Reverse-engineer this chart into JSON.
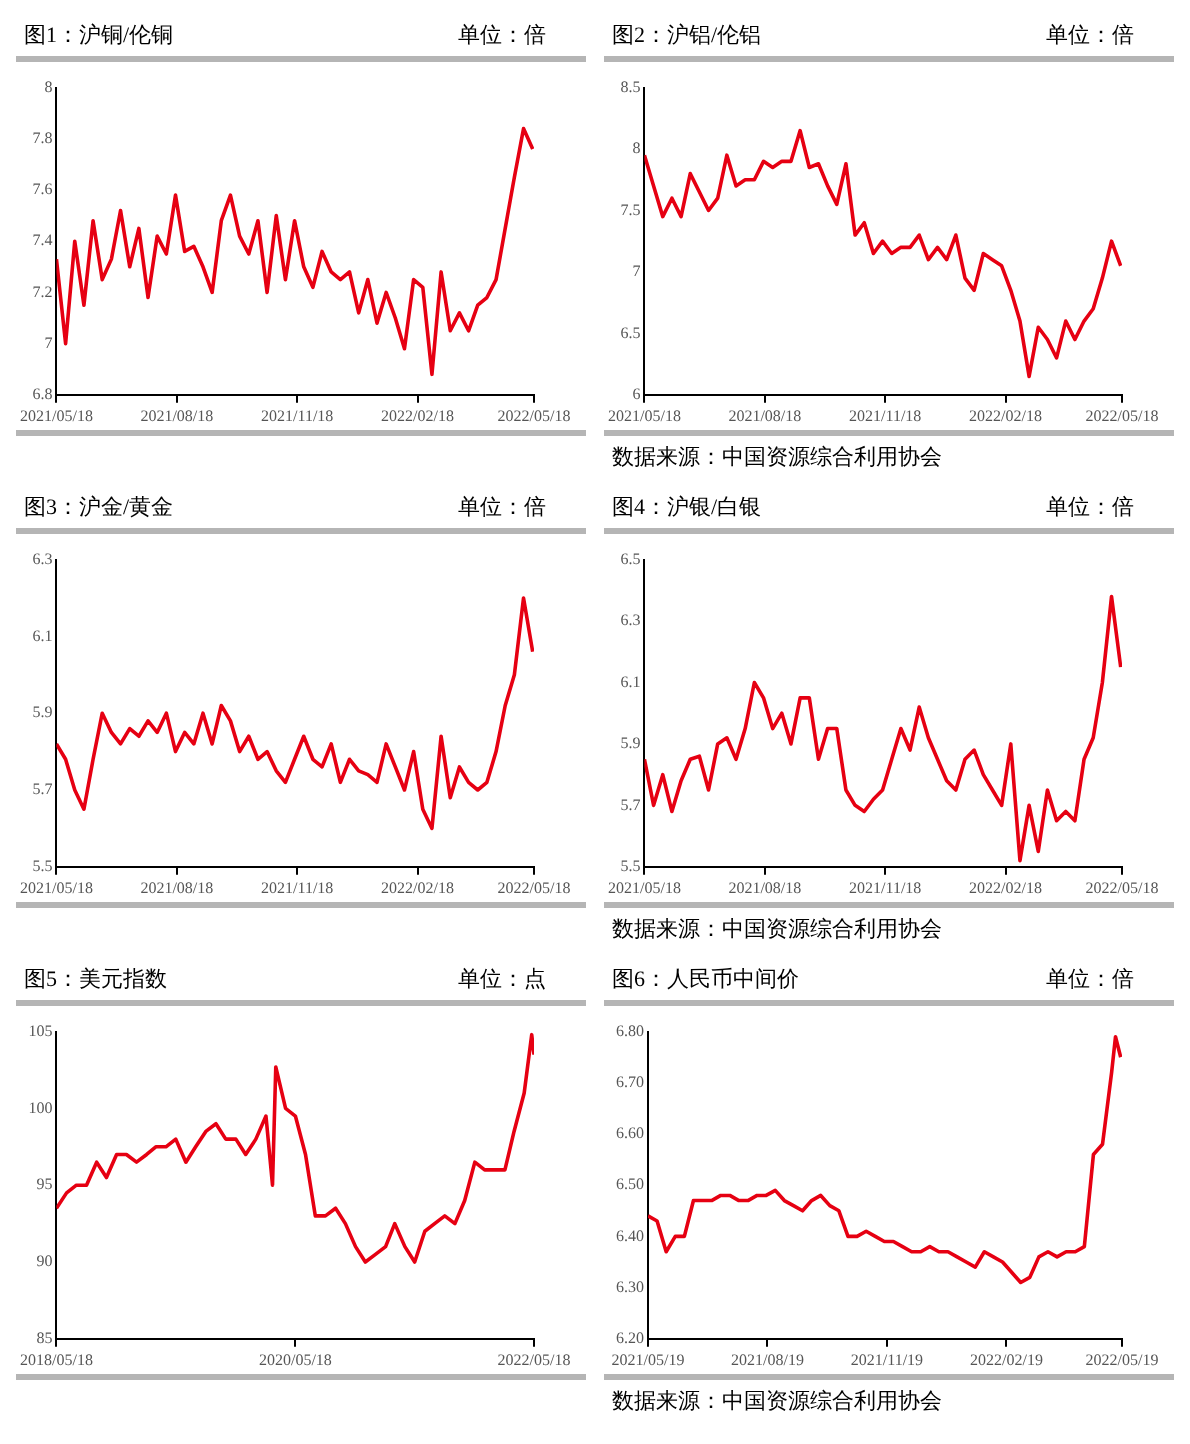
{
  "chart_data": [
    {
      "type": "line",
      "title": "图1：沪铜/伦铜",
      "subtitle": "单位：倍",
      "color": "#e60012",
      "x": [
        "2021-05-18",
        "2021-05-25",
        "2021-06-01",
        "2021-06-08",
        "2021-06-15",
        "2021-06-22",
        "2021-06-29",
        "2021-07-06",
        "2021-07-13",
        "2021-07-20",
        "2021-07-27",
        "2021-08-03",
        "2021-08-10",
        "2021-08-17",
        "2021-08-24",
        "2021-08-31",
        "2021-09-07",
        "2021-09-14",
        "2021-09-21",
        "2021-09-28",
        "2021-10-05",
        "2021-10-12",
        "2021-10-19",
        "2021-10-26",
        "2021-11-02",
        "2021-11-09",
        "2021-11-16",
        "2021-11-23",
        "2021-11-30",
        "2021-12-07",
        "2021-12-14",
        "2021-12-21",
        "2021-12-28",
        "2022-01-04",
        "2022-01-11",
        "2022-01-18",
        "2022-01-25",
        "2022-02-01",
        "2022-02-08",
        "2022-02-15",
        "2022-02-22",
        "2022-03-01",
        "2022-03-08",
        "2022-03-15",
        "2022-03-22",
        "2022-03-29",
        "2022-04-05",
        "2022-04-12",
        "2022-04-19",
        "2022-04-26",
        "2022-05-03",
        "2022-05-10",
        "2022-05-17"
      ],
      "values": [
        7.33,
        7.0,
        7.4,
        7.15,
        7.48,
        7.25,
        7.33,
        7.52,
        7.3,
        7.45,
        7.18,
        7.42,
        7.35,
        7.58,
        7.36,
        7.38,
        7.3,
        7.2,
        7.48,
        7.58,
        7.42,
        7.35,
        7.48,
        7.2,
        7.5,
        7.25,
        7.48,
        7.3,
        7.22,
        7.36,
        7.28,
        7.25,
        7.28,
        7.12,
        7.25,
        7.08,
        7.2,
        7.1,
        6.98,
        7.25,
        7.22,
        6.88,
        7.28,
        7.05,
        7.12,
        7.05,
        7.15,
        7.18,
        7.25,
        7.45,
        7.65,
        7.84,
        7.76
      ],
      "xlim": [
        "2021-05-18",
        "2022-05-18"
      ],
      "xticks": [
        {
          "value": "2021-05-18",
          "label": "2021/05/18"
        },
        {
          "value": "2021-08-18",
          "label": "2021/08/18"
        },
        {
          "value": "2021-11-18",
          "label": "2021/11/18"
        },
        {
          "value": "2022-02-18",
          "label": "2022/02/18"
        },
        {
          "value": "2022-05-18",
          "label": "2022/05/18"
        }
      ],
      "ylim": [
        6.8,
        8
      ],
      "yticks": [
        6.8,
        7,
        7.2,
        7.4,
        7.6,
        7.8,
        8
      ]
    },
    {
      "type": "line",
      "title": "图2：沪铝/伦铝",
      "subtitle": "单位：倍",
      "color": "#e60012",
      "annotations": [
        "数据来源：中国资源综合利用协会"
      ],
      "x": [
        "2021-05-18",
        "2021-05-25",
        "2021-06-01",
        "2021-06-08",
        "2021-06-15",
        "2021-06-22",
        "2021-06-29",
        "2021-07-06",
        "2021-07-13",
        "2021-07-20",
        "2021-07-27",
        "2021-08-03",
        "2021-08-10",
        "2021-08-17",
        "2021-08-24",
        "2021-08-31",
        "2021-09-07",
        "2021-09-14",
        "2021-09-21",
        "2021-09-28",
        "2021-10-05",
        "2021-10-12",
        "2021-10-19",
        "2021-10-26",
        "2021-11-02",
        "2021-11-09",
        "2021-11-16",
        "2021-11-23",
        "2021-11-30",
        "2021-12-07",
        "2021-12-14",
        "2021-12-21",
        "2021-12-28",
        "2022-01-04",
        "2022-01-11",
        "2022-01-18",
        "2022-01-25",
        "2022-02-01",
        "2022-02-08",
        "2022-02-15",
        "2022-02-22",
        "2022-03-01",
        "2022-03-08",
        "2022-03-15",
        "2022-03-22",
        "2022-03-29",
        "2022-04-05",
        "2022-04-12",
        "2022-04-19",
        "2022-04-26",
        "2022-05-03",
        "2022-05-10",
        "2022-05-17"
      ],
      "values": [
        7.95,
        7.7,
        7.45,
        7.6,
        7.45,
        7.8,
        7.65,
        7.5,
        7.6,
        7.95,
        7.7,
        7.75,
        7.75,
        7.9,
        7.85,
        7.9,
        7.9,
        8.15,
        7.85,
        7.88,
        7.7,
        7.55,
        7.88,
        7.3,
        7.4,
        7.15,
        7.25,
        7.15,
        7.2,
        7.2,
        7.3,
        7.1,
        7.2,
        7.1,
        7.3,
        6.95,
        6.85,
        7.15,
        7.1,
        7.05,
        6.85,
        6.6,
        6.15,
        6.55,
        6.45,
        6.3,
        6.6,
        6.45,
        6.6,
        6.7,
        6.95,
        7.25,
        7.05
      ],
      "xlim": [
        "2021-05-18",
        "2022-05-18"
      ],
      "xticks": [
        {
          "value": "2021-05-18",
          "label": "2021/05/18"
        },
        {
          "value": "2021-08-18",
          "label": "2021/08/18"
        },
        {
          "value": "2021-11-18",
          "label": "2021/11/18"
        },
        {
          "value": "2022-02-18",
          "label": "2022/02/18"
        },
        {
          "value": "2022-05-18",
          "label": "2022/05/18"
        }
      ],
      "ylim": [
        6,
        8.5
      ],
      "yticks": [
        6,
        6.5,
        7,
        7.5,
        8,
        8.5
      ]
    },
    {
      "type": "line",
      "title": "图3：沪金/黄金",
      "subtitle": "单位：倍",
      "color": "#e60012",
      "x": [
        "2021-05-18",
        "2021-05-25",
        "2021-06-01",
        "2021-06-08",
        "2021-06-15",
        "2021-06-22",
        "2021-06-29",
        "2021-07-06",
        "2021-07-13",
        "2021-07-20",
        "2021-07-27",
        "2021-08-03",
        "2021-08-10",
        "2021-08-17",
        "2021-08-24",
        "2021-08-31",
        "2021-09-07",
        "2021-09-14",
        "2021-09-21",
        "2021-09-28",
        "2021-10-05",
        "2021-10-12",
        "2021-10-19",
        "2021-10-26",
        "2021-11-02",
        "2021-11-09",
        "2021-11-16",
        "2021-11-23",
        "2021-11-30",
        "2021-12-07",
        "2021-12-14",
        "2021-12-21",
        "2021-12-28",
        "2022-01-04",
        "2022-01-11",
        "2022-01-18",
        "2022-01-25",
        "2022-02-01",
        "2022-02-08",
        "2022-02-15",
        "2022-02-22",
        "2022-03-01",
        "2022-03-08",
        "2022-03-15",
        "2022-03-22",
        "2022-03-29",
        "2022-04-05",
        "2022-04-12",
        "2022-04-19",
        "2022-04-26",
        "2022-05-03",
        "2022-05-10",
        "2022-05-17"
      ],
      "values": [
        5.82,
        5.78,
        5.7,
        5.65,
        5.78,
        5.9,
        5.85,
        5.82,
        5.86,
        5.84,
        5.88,
        5.85,
        5.9,
        5.8,
        5.85,
        5.82,
        5.9,
        5.82,
        5.92,
        5.88,
        5.8,
        5.84,
        5.78,
        5.8,
        5.75,
        5.72,
        5.78,
        5.84,
        5.78,
        5.76,
        5.82,
        5.72,
        5.78,
        5.75,
        5.74,
        5.72,
        5.82,
        5.76,
        5.7,
        5.8,
        5.65,
        5.6,
        5.84,
        5.68,
        5.76,
        5.72,
        5.7,
        5.72,
        5.8,
        5.92,
        6.0,
        6.2,
        6.06
      ],
      "xlim": [
        "2021-05-18",
        "2022-05-18"
      ],
      "xticks": [
        {
          "value": "2021-05-18",
          "label": "2021/05/18"
        },
        {
          "value": "2021-08-18",
          "label": "2021/08/18"
        },
        {
          "value": "2021-11-18",
          "label": "2021/11/18"
        },
        {
          "value": "2022-02-18",
          "label": "2022/02/18"
        },
        {
          "value": "2022-05-18",
          "label": "2022/05/18"
        }
      ],
      "ylim": [
        5.5,
        6.3
      ],
      "yticks": [
        5.5,
        5.7,
        5.9,
        6.1,
        6.3
      ]
    },
    {
      "type": "line",
      "title": "图4：沪银/白银",
      "subtitle": "单位：倍",
      "color": "#e60012",
      "annotations": [
        "数据来源：中国资源综合利用协会"
      ],
      "x": [
        "2021-05-18",
        "2021-05-25",
        "2021-06-01",
        "2021-06-08",
        "2021-06-15",
        "2021-06-22",
        "2021-06-29",
        "2021-07-06",
        "2021-07-13",
        "2021-07-20",
        "2021-07-27",
        "2021-08-03",
        "2021-08-10",
        "2021-08-17",
        "2021-08-24",
        "2021-08-31",
        "2021-09-07",
        "2021-09-14",
        "2021-09-21",
        "2021-09-28",
        "2021-10-05",
        "2021-10-12",
        "2021-10-19",
        "2021-10-26",
        "2021-11-02",
        "2021-11-09",
        "2021-11-16",
        "2021-11-23",
        "2021-11-30",
        "2021-12-07",
        "2021-12-14",
        "2021-12-21",
        "2021-12-28",
        "2022-01-04",
        "2022-01-11",
        "2022-01-18",
        "2022-01-25",
        "2022-02-01",
        "2022-02-08",
        "2022-02-15",
        "2022-02-22",
        "2022-03-01",
        "2022-03-08",
        "2022-03-15",
        "2022-03-22",
        "2022-03-29",
        "2022-04-05",
        "2022-04-12",
        "2022-04-19",
        "2022-04-26",
        "2022-05-03",
        "2022-05-10",
        "2022-05-17"
      ],
      "values": [
        5.85,
        5.7,
        5.8,
        5.68,
        5.78,
        5.85,
        5.86,
        5.75,
        5.9,
        5.92,
        5.85,
        5.95,
        6.1,
        6.05,
        5.95,
        6.0,
        5.9,
        6.05,
        6.05,
        5.85,
        5.95,
        5.95,
        5.75,
        5.7,
        5.68,
        5.72,
        5.75,
        5.85,
        5.95,
        5.88,
        6.02,
        5.92,
        5.85,
        5.78,
        5.75,
        5.85,
        5.88,
        5.8,
        5.75,
        5.7,
        5.9,
        5.52,
        5.7,
        5.55,
        5.75,
        5.65,
        5.68,
        5.65,
        5.85,
        5.92,
        6.1,
        6.38,
        6.15
      ],
      "xlim": [
        "2021-05-18",
        "2022-05-18"
      ],
      "xticks": [
        {
          "value": "2021-05-18",
          "label": "2021/05/18"
        },
        {
          "value": "2021-08-18",
          "label": "2021/08/18"
        },
        {
          "value": "2021-11-18",
          "label": "2021/11/18"
        },
        {
          "value": "2022-02-18",
          "label": "2022/02/18"
        },
        {
          "value": "2022-05-18",
          "label": "2022/05/18"
        }
      ],
      "ylim": [
        5.5,
        6.5
      ],
      "yticks": [
        5.5,
        5.7,
        5.9,
        6.1,
        6.3,
        6.5
      ]
    },
    {
      "type": "line",
      "title": "图5：美元指数",
      "subtitle": "单位：点",
      "color": "#e60012",
      "x": [
        "2018-05-18",
        "2018-06-18",
        "2018-07-18",
        "2018-08-18",
        "2018-09-18",
        "2018-10-18",
        "2018-11-18",
        "2018-12-18",
        "2019-01-18",
        "2019-02-18",
        "2019-03-18",
        "2019-04-18",
        "2019-05-18",
        "2019-06-18",
        "2019-07-18",
        "2019-08-18",
        "2019-09-18",
        "2019-10-18",
        "2019-11-18",
        "2019-12-18",
        "2020-01-18",
        "2020-02-18",
        "2020-03-09",
        "2020-03-19",
        "2020-04-18",
        "2020-05-18",
        "2020-06-18",
        "2020-07-18",
        "2020-08-18",
        "2020-09-18",
        "2020-10-18",
        "2020-11-18",
        "2020-12-18",
        "2021-01-18",
        "2021-02-18",
        "2021-03-18",
        "2021-04-18",
        "2021-05-18",
        "2021-06-18",
        "2021-07-18",
        "2021-08-18",
        "2021-09-18",
        "2021-10-18",
        "2021-11-18",
        "2021-12-18",
        "2022-01-18",
        "2022-02-18",
        "2022-03-18",
        "2022-04-18",
        "2022-05-11",
        "2022-05-18"
      ],
      "values": [
        93.5,
        94.5,
        95,
        95,
        96.5,
        95.5,
        97,
        97,
        96.5,
        97,
        97.5,
        97.5,
        98,
        96.5,
        97.5,
        98.5,
        99,
        98,
        98,
        97,
        98,
        99.5,
        95,
        102.7,
        100,
        99.5,
        97,
        93,
        93,
        93.5,
        92.5,
        91,
        90,
        90.5,
        91,
        92.5,
        91,
        90,
        92,
        92.5,
        93,
        92.5,
        94,
        96.5,
        96,
        96,
        96,
        98.5,
        101,
        104.8,
        103.5
      ],
      "xlim": [
        "2018-05-18",
        "2022-05-18"
      ],
      "xticks": [
        {
          "value": "2018-05-18",
          "label": "2018/05/18"
        },
        {
          "value": "2020-05-18",
          "label": "2020/05/18"
        },
        {
          "value": "2022-05-18",
          "label": "2022/05/18"
        }
      ],
      "ylim": [
        85,
        105
      ],
      "yticks": [
        85,
        90,
        95,
        100,
        105
      ]
    },
    {
      "type": "line",
      "title": "图6：人民币中间价",
      "subtitle": "单位：倍",
      "color": "#e60012",
      "annotations": [
        "数据来源：中国资源综合利用协会"
      ],
      "x": [
        "2021-05-19",
        "2021-05-26",
        "2021-06-02",
        "2021-06-09",
        "2021-06-16",
        "2021-06-23",
        "2021-06-30",
        "2021-07-07",
        "2021-07-14",
        "2021-07-21",
        "2021-07-28",
        "2021-08-04",
        "2021-08-11",
        "2021-08-18",
        "2021-08-25",
        "2021-09-01",
        "2021-09-08",
        "2021-09-15",
        "2021-09-22",
        "2021-09-29",
        "2021-10-06",
        "2021-10-13",
        "2021-10-20",
        "2021-10-27",
        "2021-11-03",
        "2021-11-10",
        "2021-11-17",
        "2021-11-24",
        "2021-12-01",
        "2021-12-08",
        "2021-12-15",
        "2021-12-22",
        "2021-12-29",
        "2022-01-05",
        "2022-01-12",
        "2022-01-19",
        "2022-01-26",
        "2022-02-02",
        "2022-02-09",
        "2022-02-16",
        "2022-02-23",
        "2022-03-02",
        "2022-03-09",
        "2022-03-16",
        "2022-03-23",
        "2022-03-30",
        "2022-04-06",
        "2022-04-13",
        "2022-04-20",
        "2022-04-27",
        "2022-05-04",
        "2022-05-11",
        "2022-05-14",
        "2022-05-18"
      ],
      "values": [
        6.44,
        6.43,
        6.37,
        6.4,
        6.4,
        6.47,
        6.47,
        6.47,
        6.48,
        6.48,
        6.47,
        6.47,
        6.48,
        6.48,
        6.49,
        6.47,
        6.46,
        6.45,
        6.47,
        6.48,
        6.46,
        6.45,
        6.4,
        6.4,
        6.41,
        6.4,
        6.39,
        6.39,
        6.38,
        6.37,
        6.37,
        6.38,
        6.37,
        6.37,
        6.36,
        6.35,
        6.34,
        6.37,
        6.36,
        6.35,
        6.33,
        6.31,
        6.32,
        6.36,
        6.37,
        6.36,
        6.37,
        6.37,
        6.38,
        6.56,
        6.58,
        6.72,
        6.79,
        6.75
      ],
      "xlim": [
        "2021-05-19",
        "2022-05-19"
      ],
      "xticks": [
        {
          "value": "2021-05-19",
          "label": "2021/05/19"
        },
        {
          "value": "2021-08-19",
          "label": "2021/08/19"
        },
        {
          "value": "2021-11-19",
          "label": "2021/11/19"
        },
        {
          "value": "2022-02-19",
          "label": "2022/02/19"
        },
        {
          "value": "2022-05-19",
          "label": "2022/05/19"
        }
      ],
      "ylim": [
        6.2,
        6.8
      ],
      "yticks": [
        {
          "value": 6.2,
          "label": "6.20"
        },
        {
          "value": 6.3,
          "label": "6.30"
        },
        {
          "value": 6.4,
          "label": "6.40"
        },
        {
          "value": 6.5,
          "label": "6.50"
        },
        {
          "value": 6.6,
          "label": "6.60"
        },
        {
          "value": 6.7,
          "label": "6.70"
        },
        {
          "value": 6.8,
          "label": "6.80"
        }
      ]
    }
  ]
}
